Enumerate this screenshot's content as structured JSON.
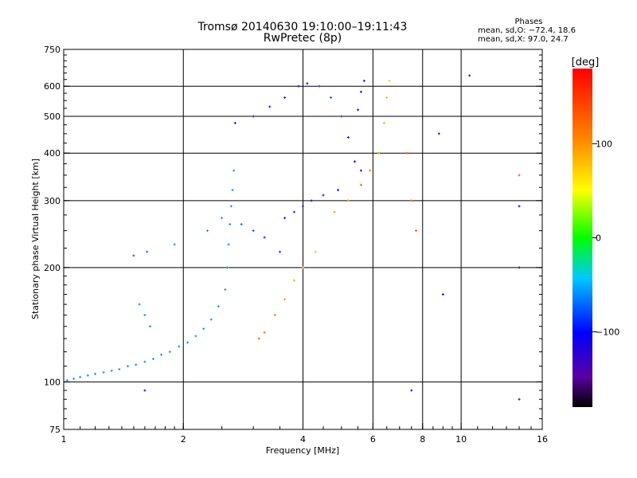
{
  "header": {
    "title": "Tromsø 20140630 19:10:00–19:11:43",
    "subtitle": "RwPretec (8p)"
  },
  "phases_box": {
    "title": "Phases",
    "line1": "mean, sd,O: −72.4, 18.6",
    "line2": "mean, sd,X:  97.0, 24.7"
  },
  "colorbar": {
    "label": "[deg]",
    "min": -180,
    "max": 180,
    "ticks": [
      {
        "value": 100,
        "label": "100"
      },
      {
        "value": 0,
        "label": "0"
      },
      {
        "value": -100,
        "label": "−100"
      }
    ]
  },
  "chart_data": {
    "type": "scatter",
    "xlabel": "Frequency [MHz]",
    "ylabel": "Stationary phase Virtual Height [km]",
    "x_scale": "log",
    "y_scale": "log",
    "xlim": [
      1,
      16
    ],
    "ylim": [
      75,
      750
    ],
    "grid": true,
    "x_ticks": [
      {
        "value": 1,
        "label": "1"
      },
      {
        "value": 2,
        "label": "2"
      },
      {
        "value": 4,
        "label": "4"
      },
      {
        "value": 6,
        "label": "6"
      },
      {
        "value": 8,
        "label": "8"
      },
      {
        "value": 10,
        "label": "10"
      },
      {
        "value": 16,
        "label": "16"
      }
    ],
    "y_ticks": [
      {
        "value": 75,
        "label": "75"
      },
      {
        "value": 100,
        "label": "100"
      },
      {
        "value": 200,
        "label": "200"
      },
      {
        "value": 300,
        "label": "300"
      },
      {
        "value": 400,
        "label": "400"
      },
      {
        "value": 500,
        "label": "500"
      },
      {
        "value": 600,
        "label": "600"
      },
      {
        "value": 750,
        "label": "750"
      }
    ],
    "x_gridlines": [
      2,
      4,
      6,
      8,
      10
    ],
    "y_gridlines": [
      100,
      200,
      300,
      400,
      500,
      600
    ],
    "series": [
      {
        "points": [
          {
            "x": 1.02,
            "y": 101,
            "phase": -60
          },
          {
            "x": 1.06,
            "y": 102,
            "phase": -60
          },
          {
            "x": 1.1,
            "y": 103,
            "phase": -60
          },
          {
            "x": 1.15,
            "y": 104,
            "phase": -60
          },
          {
            "x": 1.2,
            "y": 105,
            "phase": -60
          },
          {
            "x": 1.26,
            "y": 106,
            "phase": -60
          },
          {
            "x": 1.32,
            "y": 107,
            "phase": -60
          },
          {
            "x": 1.38,
            "y": 108,
            "phase": -60
          },
          {
            "x": 1.45,
            "y": 110,
            "phase": -60
          },
          {
            "x": 1.52,
            "y": 111,
            "phase": -60
          },
          {
            "x": 1.6,
            "y": 113,
            "phase": -60
          },
          {
            "x": 1.68,
            "y": 115,
            "phase": -60
          },
          {
            "x": 1.76,
            "y": 118,
            "phase": -60
          },
          {
            "x": 1.85,
            "y": 120,
            "phase": -60
          },
          {
            "x": 1.95,
            "y": 124,
            "phase": -60
          },
          {
            "x": 2.05,
            "y": 127,
            "phase": -60
          },
          {
            "x": 2.15,
            "y": 132,
            "phase": -60
          },
          {
            "x": 2.25,
            "y": 138,
            "phase": -60
          },
          {
            "x": 2.35,
            "y": 146,
            "phase": -60
          },
          {
            "x": 2.45,
            "y": 158,
            "phase": -60
          },
          {
            "x": 2.55,
            "y": 175,
            "phase": -60
          },
          {
            "x": 2.58,
            "y": 200,
            "phase": -60
          },
          {
            "x": 2.6,
            "y": 230,
            "phase": -60
          },
          {
            "x": 2.62,
            "y": 260,
            "phase": -60
          },
          {
            "x": 2.64,
            "y": 290,
            "phase": -60
          },
          {
            "x": 2.66,
            "y": 320,
            "phase": -60
          },
          {
            "x": 2.68,
            "y": 360,
            "phase": -60
          },
          {
            "x": 1.55,
            "y": 160,
            "phase": -60
          },
          {
            "x": 1.6,
            "y": 150,
            "phase": -60
          },
          {
            "x": 1.65,
            "y": 140,
            "phase": -60
          },
          {
            "x": 1.62,
            "y": 220,
            "phase": -70
          },
          {
            "x": 1.5,
            "y": 215,
            "phase": -70
          },
          {
            "x": 1.9,
            "y": 230,
            "phase": -60
          },
          {
            "x": 2.3,
            "y": 250,
            "phase": -60
          },
          {
            "x": 2.5,
            "y": 270,
            "phase": -60
          },
          {
            "x": 2.8,
            "y": 260,
            "phase": -70
          },
          {
            "x": 3.0,
            "y": 250,
            "phase": -80
          },
          {
            "x": 3.2,
            "y": 240,
            "phase": -90
          },
          {
            "x": 3.5,
            "y": 220,
            "phase": -90
          },
          {
            "x": 3.6,
            "y": 270,
            "phase": -110
          },
          {
            "x": 3.8,
            "y": 280,
            "phase": -110
          },
          {
            "x": 4.0,
            "y": 290,
            "phase": -110
          },
          {
            "x": 4.2,
            "y": 300,
            "phase": -110
          },
          {
            "x": 4.5,
            "y": 310,
            "phase": -110
          },
          {
            "x": 4.9,
            "y": 320,
            "phase": -110
          },
          {
            "x": 2.7,
            "y": 480,
            "phase": -110
          },
          {
            "x": 3.0,
            "y": 500,
            "phase": -110
          },
          {
            "x": 3.3,
            "y": 530,
            "phase": -110
          },
          {
            "x": 3.6,
            "y": 560,
            "phase": -110
          },
          {
            "x": 3.9,
            "y": 600,
            "phase": -110
          },
          {
            "x": 4.1,
            "y": 610,
            "phase": -110
          },
          {
            "x": 4.4,
            "y": 600,
            "phase": -80
          },
          {
            "x": 4.7,
            "y": 560,
            "phase": -80
          },
          {
            "x": 5.0,
            "y": 500,
            "phase": -90
          },
          {
            "x": 5.2,
            "y": 440,
            "phase": -100
          },
          {
            "x": 5.4,
            "y": 380,
            "phase": -110
          },
          {
            "x": 5.6,
            "y": 360,
            "phase": -110
          },
          {
            "x": 5.5,
            "y": 520,
            "phase": -110
          },
          {
            "x": 5.6,
            "y": 580,
            "phase": -110
          },
          {
            "x": 5.7,
            "y": 620,
            "phase": -110
          },
          {
            "x": 3.1,
            "y": 130,
            "phase": 130
          },
          {
            "x": 3.2,
            "y": 135,
            "phase": 120
          },
          {
            "x": 3.4,
            "y": 150,
            "phase": 110
          },
          {
            "x": 3.6,
            "y": 165,
            "phase": 100
          },
          {
            "x": 3.8,
            "y": 185,
            "phase": 90
          },
          {
            "x": 4.0,
            "y": 200,
            "phase": 90
          },
          {
            "x": 4.3,
            "y": 220,
            "phase": 80
          },
          {
            "x": 4.8,
            "y": 280,
            "phase": 100
          },
          {
            "x": 5.2,
            "y": 300,
            "phase": 110
          },
          {
            "x": 5.6,
            "y": 330,
            "phase": 130
          },
          {
            "x": 5.9,
            "y": 360,
            "phase": 120
          },
          {
            "x": 6.2,
            "y": 400,
            "phase": 100
          },
          {
            "x": 6.4,
            "y": 480,
            "phase": 90
          },
          {
            "x": 6.5,
            "y": 560,
            "phase": 80
          },
          {
            "x": 6.6,
            "y": 620,
            "phase": 75
          },
          {
            "x": 7.3,
            "y": 400,
            "phase": 140
          },
          {
            "x": 7.5,
            "y": 300,
            "phase": 130
          },
          {
            "x": 7.7,
            "y": 250,
            "phase": 140
          },
          {
            "x": 8.8,
            "y": 450,
            "phase": -120
          },
          {
            "x": 9.0,
            "y": 170,
            "phase": -100
          },
          {
            "x": 10.5,
            "y": 640,
            "phase": -120
          },
          {
            "x": 14.0,
            "y": 350,
            "phase": 130
          },
          {
            "x": 14.0,
            "y": 290,
            "phase": -100
          },
          {
            "x": 14.0,
            "y": 200,
            "phase": -110
          },
          {
            "x": 14.0,
            "y": 90,
            "phase": -110
          },
          {
            "x": 1.6,
            "y": 95,
            "phase": -110
          },
          {
            "x": 7.5,
            "y": 95,
            "phase": -110
          }
        ]
      }
    ]
  }
}
